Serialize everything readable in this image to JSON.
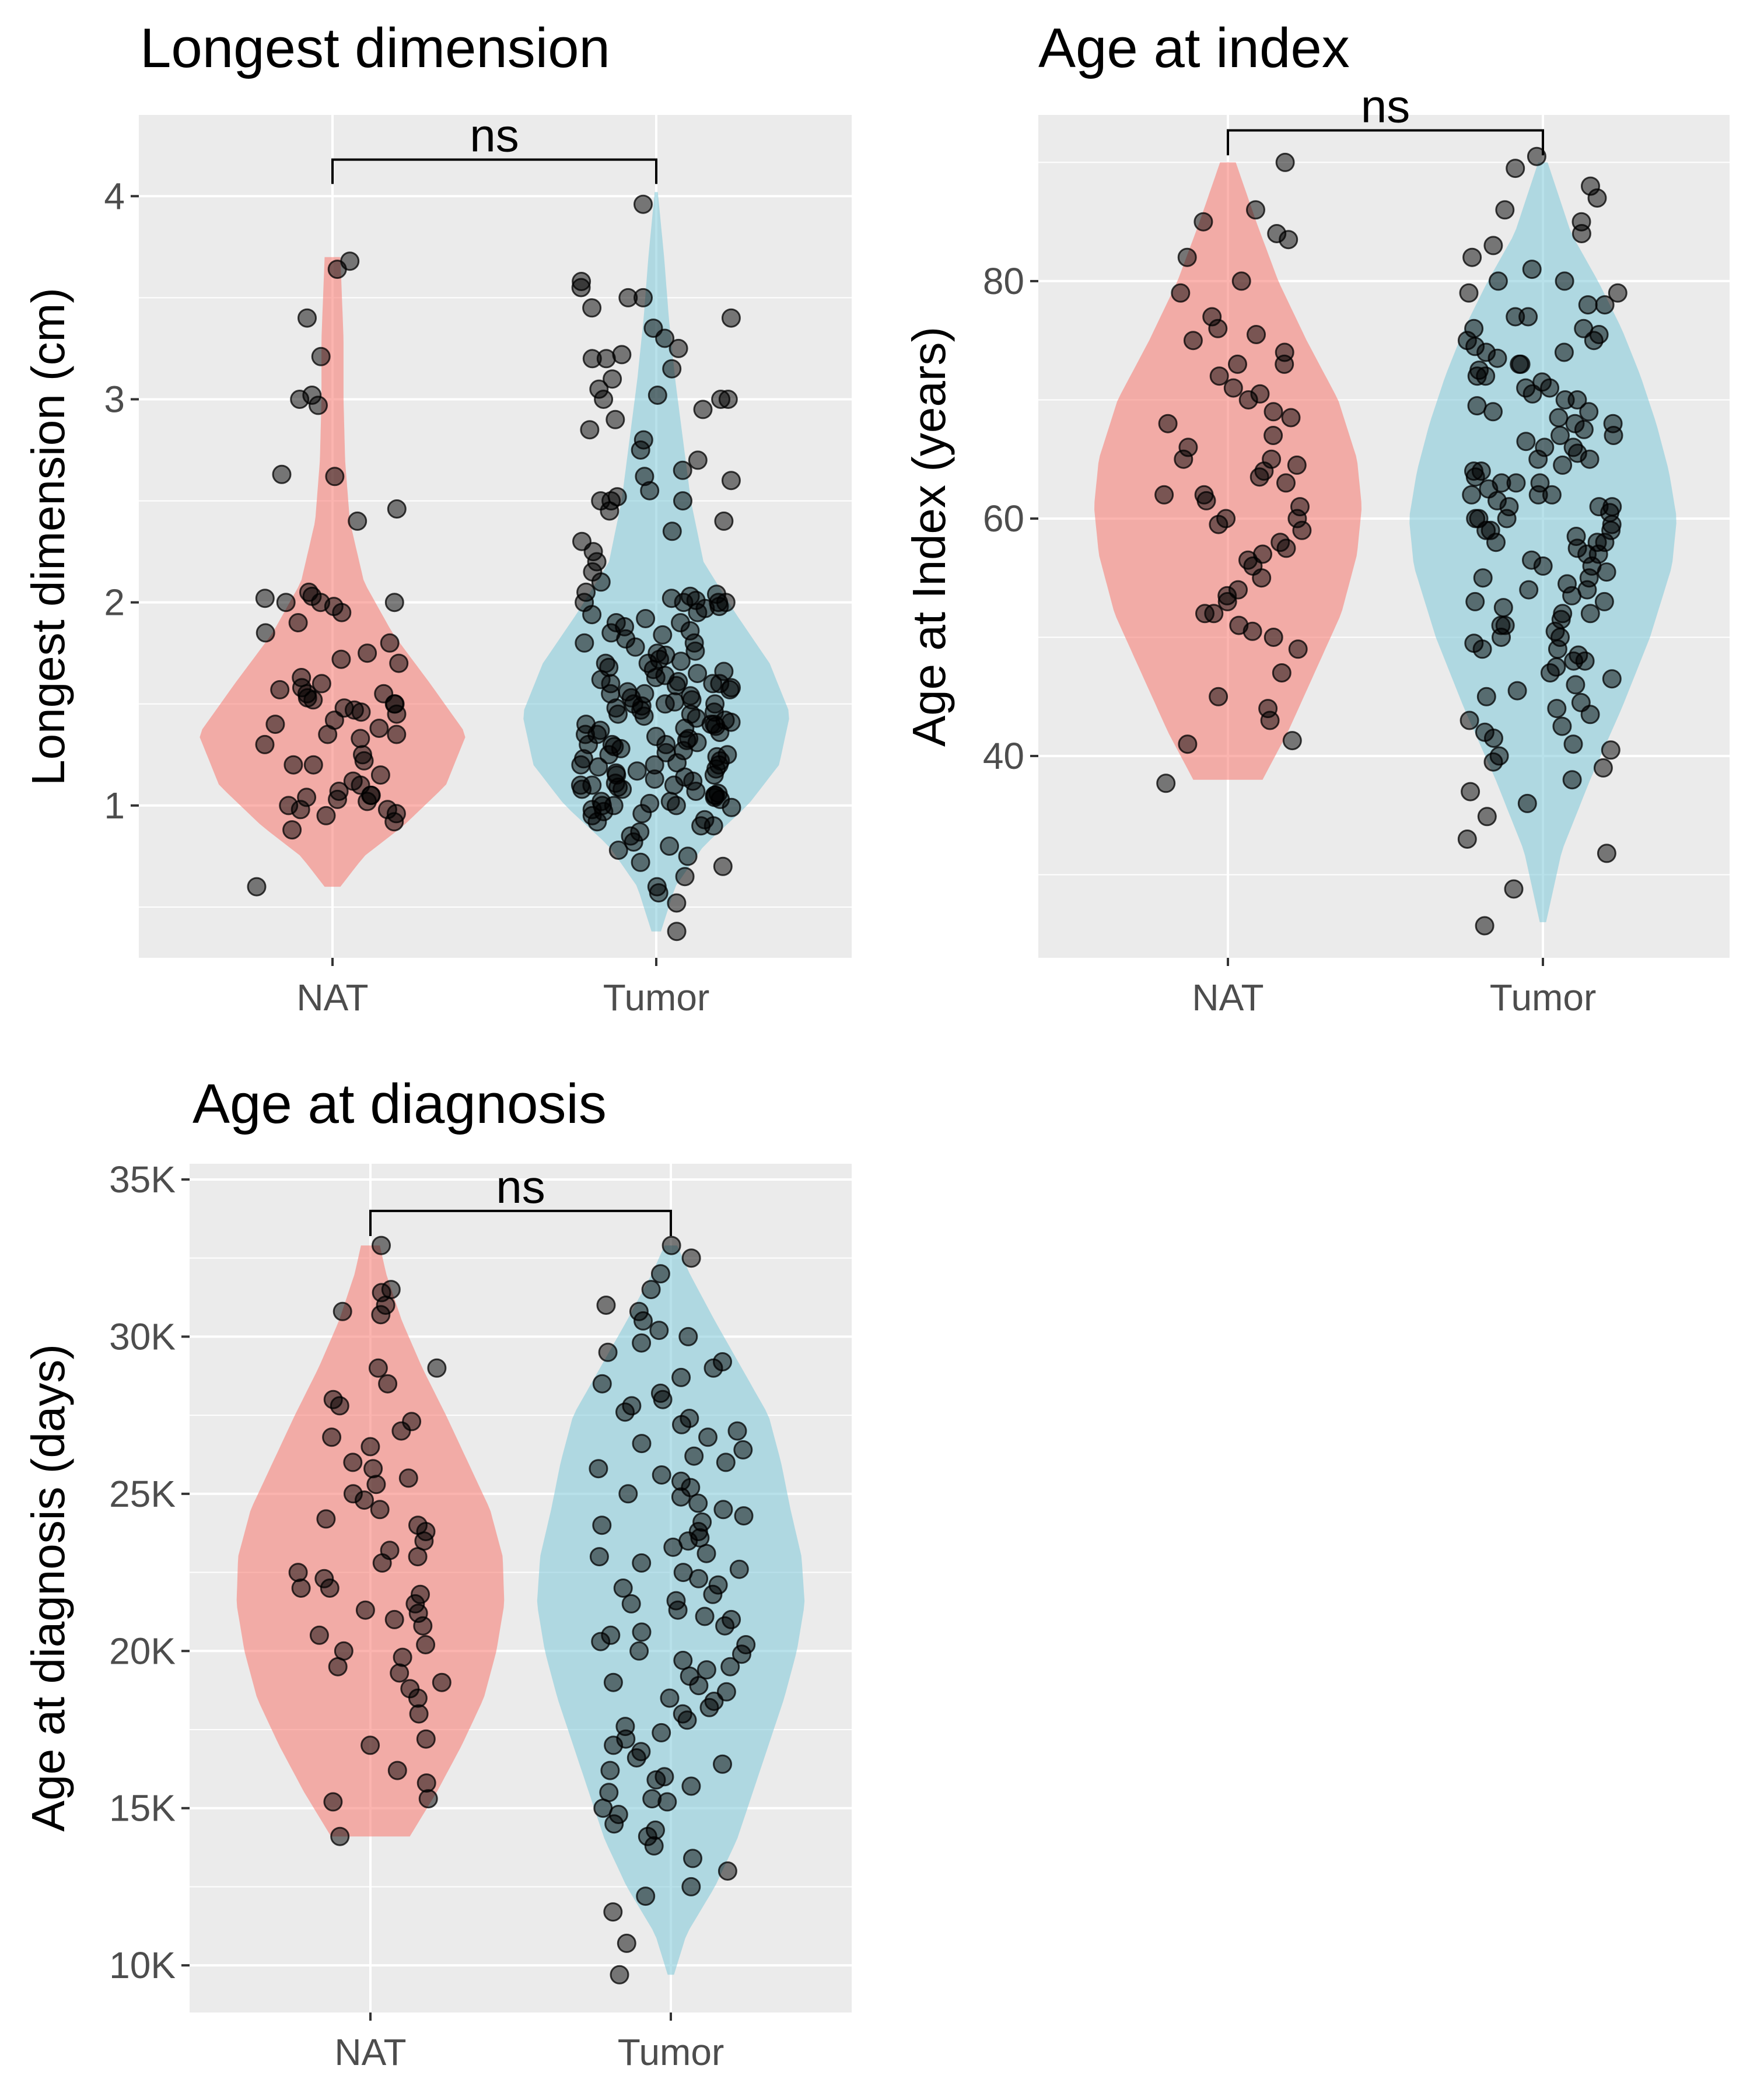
{
  "colors": {
    "panel_background": "#ebebeb",
    "grid_major": "#ffffff",
    "grid_minor": "#f5f5f5",
    "NAT": "#f8766d",
    "Tumor": "#7ec8d8",
    "points": "#000000"
  },
  "chart_data": [
    {
      "type": "violin",
      "title": "Longest dimension",
      "xlabel": "",
      "ylabel": "Longest dimension (cm)",
      "categories": [
        "NAT",
        "Tumor"
      ],
      "ylim": [
        0.25,
        4.4
      ],
      "yticks": [
        1,
        2,
        3,
        4
      ],
      "ytick_labels": [
        "1",
        "2",
        "3",
        "4"
      ],
      "grid": true,
      "significance": {
        "groups": [
          "NAT",
          "Tumor"
        ],
        "label": "ns",
        "y": 4.18,
        "drop": 0.12
      },
      "series": [
        {
          "name": "NAT",
          "range": [
            0.6,
            3.7
          ],
          "density": [
            [
              0.6,
              0.05
            ],
            [
              0.75,
              0.2
            ],
            [
              0.9,
              0.45
            ],
            [
              1.1,
              0.72
            ],
            [
              1.35,
              0.85
            ],
            [
              1.6,
              0.62
            ],
            [
              1.85,
              0.38
            ],
            [
              2.1,
              0.2
            ],
            [
              2.4,
              0.11
            ],
            [
              2.7,
              0.08
            ],
            [
              3.0,
              0.07
            ],
            [
              3.3,
              0.07
            ],
            [
              3.7,
              0.05
            ]
          ],
          "points": [
            0.6,
            0.96,
            0.98,
            1.0,
            1.02,
            1.03,
            1.04,
            1.05,
            1.05,
            1.07,
            1.1,
            1.12,
            1.15,
            1.2,
            1.2,
            1.22,
            1.25,
            1.3,
            1.33,
            1.35,
            1.35,
            1.38,
            1.4,
            1.42,
            1.45,
            1.46,
            1.47,
            1.48,
            1.5,
            1.5,
            1.52,
            1.53,
            1.55,
            1.55,
            1.57,
            1.58,
            1.6,
            1.63,
            1.7,
            1.72,
            1.75,
            1.8,
            1.85,
            1.9,
            1.95,
            1.98,
            2.0,
            2.0,
            2.0,
            2.02,
            2.03,
            2.05,
            2.4,
            2.46,
            2.62,
            2.63,
            2.97,
            3.0,
            3.02,
            3.21,
            3.4,
            3.64,
            3.68,
            0.88,
            0.92,
            0.95,
            0.98
          ]
        },
        {
          "name": "Tumor",
          "range": [
            0.38,
            4.02
          ],
          "density": [
            [
              0.38,
              0.03
            ],
            [
              0.6,
              0.12
            ],
            [
              0.8,
              0.3
            ],
            [
              1.0,
              0.58
            ],
            [
              1.2,
              0.78
            ],
            [
              1.45,
              0.85
            ],
            [
              1.7,
              0.72
            ],
            [
              1.95,
              0.5
            ],
            [
              2.2,
              0.3
            ],
            [
              2.5,
              0.22
            ],
            [
              2.8,
              0.17
            ],
            [
              3.1,
              0.12
            ],
            [
              3.4,
              0.08
            ],
            [
              3.7,
              0.05
            ],
            [
              4.02,
              0.01
            ]
          ],
          "points": [
            0.38,
            0.52,
            0.57,
            0.6,
            0.65,
            0.7,
            0.72,
            0.75,
            0.78,
            0.8,
            0.82,
            0.85,
            0.87,
            0.9,
            0.9,
            0.92,
            0.93,
            0.95,
            0.96,
            0.97,
            0.98,
            0.99,
            1.0,
            1.0,
            1.0,
            1.01,
            1.02,
            1.02,
            1.03,
            1.04,
            1.05,
            1.05,
            1.06,
            1.07,
            1.08,
            1.08,
            1.09,
            1.1,
            1.1,
            1.1,
            1.11,
            1.12,
            1.13,
            1.14,
            1.15,
            1.15,
            1.16,
            1.17,
            1.18,
            1.19,
            1.2,
            1.2,
            1.2,
            1.21,
            1.22,
            1.23,
            1.24,
            1.25,
            1.25,
            1.26,
            1.27,
            1.28,
            1.29,
            1.3,
            1.3,
            1.3,
            1.31,
            1.32,
            1.33,
            1.34,
            1.35,
            1.35,
            1.36,
            1.37,
            1.38,
            1.39,
            1.4,
            1.4,
            1.4,
            1.41,
            1.42,
            1.43,
            1.44,
            1.45,
            1.45,
            1.46,
            1.47,
            1.48,
            1.49,
            1.5,
            1.5,
            1.5,
            1.51,
            1.52,
            1.53,
            1.54,
            1.55,
            1.55,
            1.56,
            1.57,
            1.58,
            1.59,
            1.6,
            1.6,
            1.6,
            1.61,
            1.62,
            1.63,
            1.64,
            1.65,
            1.66,
            1.67,
            1.68,
            1.7,
            1.7,
            1.71,
            1.72,
            1.74,
            1.75,
            1.76,
            1.78,
            1.8,
            1.8,
            1.82,
            1.84,
            1.85,
            1.86,
            1.88,
            1.9,
            1.9,
            1.92,
            1.94,
            1.95,
            1.97,
            1.98,
            2.0,
            2.0,
            2.0,
            2.0,
            2.01,
            2.02,
            2.03,
            2.04,
            2.05,
            2.1,
            2.15,
            2.2,
            2.25,
            2.3,
            2.35,
            2.4,
            2.45,
            2.5,
            2.5,
            2.5,
            2.52,
            2.55,
            2.6,
            2.62,
            2.65,
            2.7,
            2.75,
            2.8,
            2.85,
            2.9,
            2.95,
            3.0,
            3.0,
            3.0,
            3.02,
            3.05,
            3.1,
            3.15,
            3.2,
            3.2,
            3.22,
            3.25,
            3.3,
            3.35,
            3.4,
            3.45,
            3.5,
            3.5,
            3.55,
            3.58,
            3.96
          ]
        }
      ]
    },
    {
      "type": "violin",
      "title": "Age at index",
      "xlabel": "",
      "ylabel": "Age at Index (years)",
      "categories": [
        "NAT",
        "Tumor"
      ],
      "ylim": [
        23,
        94
      ],
      "yticks": [
        40,
        60,
        80
      ],
      "ytick_labels": [
        "40",
        "60",
        "80"
      ],
      "grid": true,
      "significance": {
        "groups": [
          "NAT",
          "Tumor"
        ],
        "label": "ns",
        "y": 92.7,
        "drop": 2.1
      },
      "series": [
        {
          "name": "NAT",
          "range": [
            38,
            90
          ],
          "density": [
            [
              38,
              0.22
            ],
            [
              42,
              0.38
            ],
            [
              47,
              0.55
            ],
            [
              52,
              0.72
            ],
            [
              57,
              0.82
            ],
            [
              61,
              0.85
            ],
            [
              65,
              0.82
            ],
            [
              70,
              0.7
            ],
            [
              75,
              0.5
            ],
            [
              80,
              0.32
            ],
            [
              85,
              0.18
            ],
            [
              90,
              0.05
            ]
          ],
          "points": [
            37.7,
            41,
            41.3,
            43,
            44,
            45,
            47,
            49,
            50,
            50.5,
            51,
            52,
            52,
            53,
            53.5,
            54,
            55,
            56,
            56.5,
            57,
            57.5,
            58,
            59,
            59.5,
            60,
            60,
            61,
            61.5,
            62,
            62,
            63,
            63.5,
            64,
            64.5,
            65,
            65,
            66,
            67,
            68,
            68.5,
            69,
            70,
            70.5,
            71,
            72,
            73,
            73,
            74,
            75,
            75.5,
            76,
            77,
            79,
            80,
            82,
            83.5,
            84,
            85,
            86,
            90
          ]
        },
        {
          "name": "Tumor",
          "range": [
            26,
            90
          ],
          "density": [
            [
              26,
              0.02
            ],
            [
              32,
              0.12
            ],
            [
              38,
              0.3
            ],
            [
              44,
              0.5
            ],
            [
              50,
              0.68
            ],
            [
              56,
              0.82
            ],
            [
              60,
              0.85
            ],
            [
              64,
              0.8
            ],
            [
              68,
              0.72
            ],
            [
              72,
              0.62
            ],
            [
              76,
              0.5
            ],
            [
              80,
              0.35
            ],
            [
              84,
              0.18
            ],
            [
              90,
              0.03
            ]
          ],
          "points": [
            25.7,
            28.8,
            31.8,
            33,
            34.9,
            36,
            37,
            38,
            39,
            39.5,
            40,
            40.5,
            41,
            41.5,
            42,
            42.5,
            43,
            43.5,
            44,
            44.5,
            45,
            45.5,
            46,
            46.5,
            47,
            47.5,
            48,
            48,
            48.5,
            49,
            49,
            49.5,
            50,
            50,
            50.5,
            51,
            51,
            51.5,
            52,
            52,
            52.5,
            53,
            53,
            53.5,
            54,
            54,
            54.5,
            55,
            55,
            55.5,
            56,
            56,
            56.5,
            57,
            57,
            57.5,
            58,
            58,
            58,
            58.5,
            59,
            59,
            59,
            59.5,
            60,
            60,
            60,
            60.5,
            61,
            61,
            61,
            61.5,
            62,
            62,
            62,
            62.5,
            63,
            63,
            63,
            63.5,
            64,
            64,
            64.5,
            65,
            65,
            65.5,
            66,
            66,
            66.5,
            67,
            67,
            67.5,
            68,
            68,
            68.5,
            69,
            69,
            69.5,
            70,
            70,
            70.5,
            71,
            71,
            71.5,
            72,
            72,
            72.5,
            73,
            73,
            73.5,
            74,
            74,
            74.5,
            75,
            75,
            75.5,
            76,
            76,
            77,
            77,
            78,
            78,
            79,
            79,
            80,
            80,
            81,
            82,
            83,
            84,
            85,
            86,
            87,
            88,
            89.5,
            90.5
          ]
        }
      ]
    },
    {
      "type": "violin",
      "title": "Age at diagnosis",
      "xlabel": "",
      "ylabel": "Age at diagnosis (days)",
      "categories": [
        "NAT",
        "Tumor"
      ],
      "ylim": [
        8500,
        35500
      ],
      "yticks": [
        10000,
        15000,
        20000,
        25000,
        30000,
        35000
      ],
      "ytick_labels": [
        "10K",
        "15K",
        "20K",
        "25K",
        "30K",
        "35K"
      ],
      "grid": true,
      "significance": {
        "groups": [
          "NAT",
          "Tumor"
        ],
        "label": "ns",
        "y": 34000,
        "drop": 800
      },
      "series": [
        {
          "name": "NAT",
          "range": [
            14100,
            32900
          ],
          "density": [
            [
              14100,
              0.25
            ],
            [
              15500,
              0.42
            ],
            [
              17000,
              0.58
            ],
            [
              18500,
              0.72
            ],
            [
              20000,
              0.8
            ],
            [
              21500,
              0.85
            ],
            [
              23000,
              0.84
            ],
            [
              24500,
              0.76
            ],
            [
              26000,
              0.62
            ],
            [
              27500,
              0.48
            ],
            [
              29000,
              0.33
            ],
            [
              30500,
              0.2
            ],
            [
              32000,
              0.1
            ],
            [
              32900,
              0.06
            ]
          ],
          "points": [
            14100,
            15200,
            15300,
            15800,
            16200,
            17000,
            17200,
            18000,
            18500,
            18800,
            19000,
            19300,
            19500,
            19800,
            20000,
            20200,
            20500,
            20800,
            21000,
            21200,
            21300,
            21500,
            21800,
            22000,
            22000,
            22300,
            22500,
            22800,
            23000,
            23200,
            23500,
            23800,
            24000,
            24200,
            24500,
            24800,
            25000,
            25300,
            25500,
            25800,
            26000,
            26500,
            26800,
            27000,
            27300,
            27800,
            28000,
            28500,
            29000,
            29000,
            30700,
            30800,
            31000,
            31400,
            31500,
            32900
          ]
        },
        {
          "name": "Tumor",
          "range": [
            9700,
            32900
          ],
          "density": [
            [
              9700,
              0.02
            ],
            [
              11000,
              0.1
            ],
            [
              12500,
              0.28
            ],
            [
              14000,
              0.42
            ],
            [
              15500,
              0.52
            ],
            [
              17000,
              0.62
            ],
            [
              18500,
              0.72
            ],
            [
              20000,
              0.8
            ],
            [
              21500,
              0.85
            ],
            [
              23000,
              0.83
            ],
            [
              24500,
              0.76
            ],
            [
              26000,
              0.7
            ],
            [
              27500,
              0.62
            ],
            [
              29000,
              0.45
            ],
            [
              30500,
              0.28
            ],
            [
              32000,
              0.12
            ],
            [
              32900,
              0.04
            ]
          ],
          "points": [
            9700,
            10700,
            11700,
            12200,
            12500,
            13000,
            13400,
            13800,
            14100,
            14300,
            14500,
            14800,
            15000,
            15200,
            15300,
            15500,
            15700,
            15900,
            16000,
            16200,
            16400,
            16600,
            16800,
            17000,
            17200,
            17400,
            17600,
            17800,
            18000,
            18200,
            18400,
            18500,
            18700,
            18900,
            19000,
            19200,
            19400,
            19500,
            19700,
            19900,
            20000,
            20200,
            20300,
            20500,
            20600,
            20800,
            21000,
            21100,
            21300,
            21500,
            21600,
            21800,
            22000,
            22100,
            22300,
            22500,
            22600,
            22800,
            23000,
            23100,
            23300,
            23500,
            23600,
            23800,
            24000,
            24100,
            24300,
            24500,
            24700,
            24900,
            25000,
            25200,
            25400,
            25600,
            25800,
            26000,
            26200,
            26400,
            26600,
            26800,
            27000,
            27200,
            27400,
            27600,
            27800,
            28000,
            28200,
            28500,
            28700,
            29000,
            29200,
            29500,
            29800,
            30000,
            30200,
            30500,
            30800,
            31000,
            31500,
            32000,
            32500,
            32900
          ]
        }
      ]
    }
  ]
}
